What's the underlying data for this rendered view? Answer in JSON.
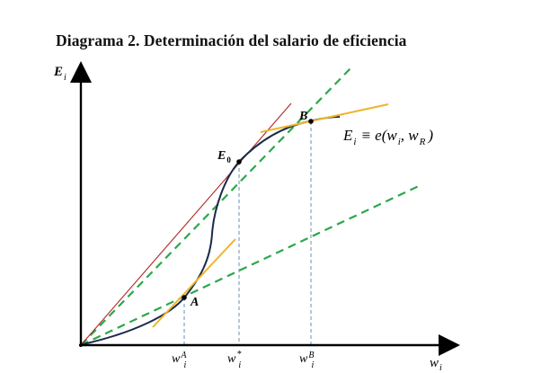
{
  "title": "Diagrama 2. Determinación del salario de eficiencia",
  "axes": {
    "y_label": {
      "main": "E",
      "sub": "i"
    },
    "x_label": {
      "main": "w",
      "sub": "i"
    }
  },
  "points": {
    "A": "A",
    "B": "B",
    "E0": {
      "main": "E",
      "sub": "0"
    }
  },
  "x_ticks": {
    "wA": {
      "main": "w",
      "sup": "A",
      "sub": "i"
    },
    "wstar": {
      "main": "w",
      "sup": "*",
      "sub": "i"
    },
    "wB": {
      "main": "w",
      "sup": "B",
      "sub": "i"
    }
  },
  "function_label": {
    "lhs": "E",
    "lhs_sub": "i",
    "op": "≡ e(w",
    "w_sub": "i",
    "sep": ", w",
    "r_sub": "R",
    "close": ")"
  },
  "colors": {
    "effort_curve": "#1a2a4a",
    "ray_to_origin": "#2aa84a",
    "tangent_lines": "#f0b429",
    "tangent_from_origin": "#b22222",
    "dropline": "#6a8fb0",
    "axis": "#000000"
  }
}
